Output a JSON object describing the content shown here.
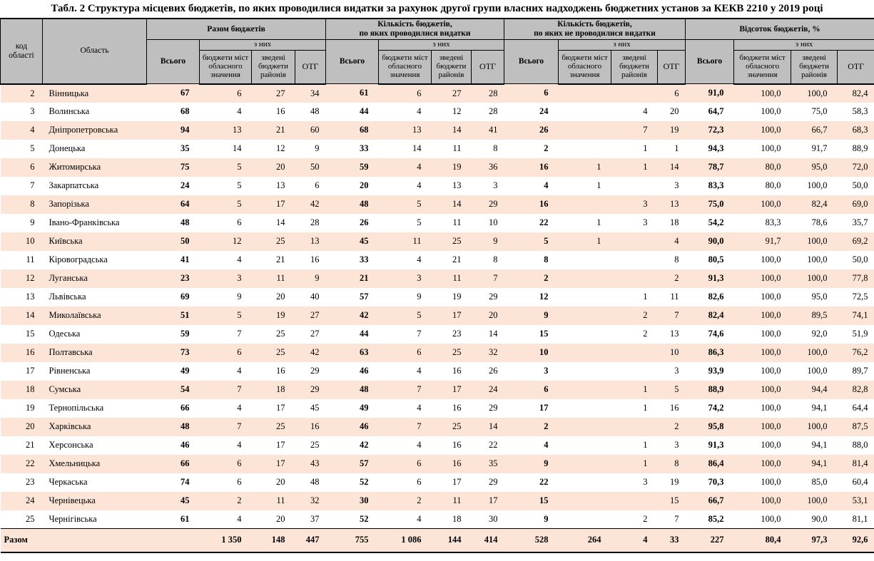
{
  "title": "Табл. 2 Структура місцевих бюджетів, по яких проводилися видатки за рахунок другої групи власних надходжень бюджетних установ за КЕКВ 2210 у 2019 році",
  "colors": {
    "header_bg": "#bfbfbf",
    "band_bg": "#fce4d6",
    "border": "#000000"
  },
  "header": {
    "region_code": "код області",
    "region": "Область",
    "groups": [
      {
        "label": "Разом бюджетів"
      },
      {
        "label": "Кількість бюджетів,\nпо яких проводилися видатки"
      },
      {
        "label": "Кількість бюджетів,\nпо яких не проводилися видатки"
      },
      {
        "label": "Відсоток бюджетів, %"
      }
    ],
    "total_label": "Всього",
    "of_them_label": "з них",
    "sub_columns": [
      "бюджети міст обласного значення",
      "зведені бюджети районів",
      "ОТГ"
    ]
  },
  "rows": [
    {
      "code": "2",
      "region": "Вінницька",
      "values": [
        "67",
        "6",
        "27",
        "34",
        "61",
        "6",
        "27",
        "28",
        "6",
        "",
        "",
        "6",
        "91,0",
        "100,0",
        "100,0",
        "82,4"
      ]
    },
    {
      "code": "3",
      "region": "Волинська",
      "values": [
        "68",
        "4",
        "16",
        "48",
        "44",
        "4",
        "12",
        "28",
        "24",
        "",
        "4",
        "20",
        "64,7",
        "100,0",
        "75,0",
        "58,3"
      ]
    },
    {
      "code": "4",
      "region": "Дніпропетровська",
      "values": [
        "94",
        "13",
        "21",
        "60",
        "68",
        "13",
        "14",
        "41",
        "26",
        "",
        "7",
        "19",
        "72,3",
        "100,0",
        "66,7",
        "68,3"
      ]
    },
    {
      "code": "5",
      "region": "Донецька",
      "values": [
        "35",
        "14",
        "12",
        "9",
        "33",
        "14",
        "11",
        "8",
        "2",
        "",
        "1",
        "1",
        "94,3",
        "100,0",
        "91,7",
        "88,9"
      ]
    },
    {
      "code": "6",
      "region": "Житомирська",
      "values": [
        "75",
        "5",
        "20",
        "50",
        "59",
        "4",
        "19",
        "36",
        "16",
        "1",
        "1",
        "14",
        "78,7",
        "80,0",
        "95,0",
        "72,0"
      ]
    },
    {
      "code": "7",
      "region": "Закарпатська",
      "values": [
        "24",
        "5",
        "13",
        "6",
        "20",
        "4",
        "13",
        "3",
        "4",
        "1",
        "",
        "3",
        "83,3",
        "80,0",
        "100,0",
        "50,0"
      ]
    },
    {
      "code": "8",
      "region": "Запорізька",
      "values": [
        "64",
        "5",
        "17",
        "42",
        "48",
        "5",
        "14",
        "29",
        "16",
        "",
        "3",
        "13",
        "75,0",
        "100,0",
        "82,4",
        "69,0"
      ]
    },
    {
      "code": "9",
      "region": "Івано-Франківська",
      "values": [
        "48",
        "6",
        "14",
        "28",
        "26",
        "5",
        "11",
        "10",
        "22",
        "1",
        "3",
        "18",
        "54,2",
        "83,3",
        "78,6",
        "35,7"
      ]
    },
    {
      "code": "10",
      "region": "Київська",
      "values": [
        "50",
        "12",
        "25",
        "13",
        "45",
        "11",
        "25",
        "9",
        "5",
        "1",
        "",
        "4",
        "90,0",
        "91,7",
        "100,0",
        "69,2"
      ]
    },
    {
      "code": "11",
      "region": "Кіровоградська",
      "values": [
        "41",
        "4",
        "21",
        "16",
        "33",
        "4",
        "21",
        "8",
        "8",
        "",
        "",
        "8",
        "80,5",
        "100,0",
        "100,0",
        "50,0"
      ]
    },
    {
      "code": "12",
      "region": "Луганська",
      "values": [
        "23",
        "3",
        "11",
        "9",
        "21",
        "3",
        "11",
        "7",
        "2",
        "",
        "",
        "2",
        "91,3",
        "100,0",
        "100,0",
        "77,8"
      ]
    },
    {
      "code": "13",
      "region": "Львівська",
      "values": [
        "69",
        "9",
        "20",
        "40",
        "57",
        "9",
        "19",
        "29",
        "12",
        "",
        "1",
        "11",
        "82,6",
        "100,0",
        "95,0",
        "72,5"
      ]
    },
    {
      "code": "14",
      "region": "Миколаївська",
      "values": [
        "51",
        "5",
        "19",
        "27",
        "42",
        "5",
        "17",
        "20",
        "9",
        "",
        "2",
        "7",
        "82,4",
        "100,0",
        "89,5",
        "74,1"
      ]
    },
    {
      "code": "15",
      "region": "Одеська",
      "values": [
        "59",
        "7",
        "25",
        "27",
        "44",
        "7",
        "23",
        "14",
        "15",
        "",
        "2",
        "13",
        "74,6",
        "100,0",
        "92,0",
        "51,9"
      ]
    },
    {
      "code": "16",
      "region": "Полтавська",
      "values": [
        "73",
        "6",
        "25",
        "42",
        "63",
        "6",
        "25",
        "32",
        "10",
        "",
        "",
        "10",
        "86,3",
        "100,0",
        "100,0",
        "76,2"
      ]
    },
    {
      "code": "17",
      "region": "Рівненська",
      "values": [
        "49",
        "4",
        "16",
        "29",
        "46",
        "4",
        "16",
        "26",
        "3",
        "",
        "",
        "3",
        "93,9",
        "100,0",
        "100,0",
        "89,7"
      ]
    },
    {
      "code": "18",
      "region": "Сумська",
      "values": [
        "54",
        "7",
        "18",
        "29",
        "48",
        "7",
        "17",
        "24",
        "6",
        "",
        "1",
        "5",
        "88,9",
        "100,0",
        "94,4",
        "82,8"
      ]
    },
    {
      "code": "19",
      "region": "Тернопільська",
      "values": [
        "66",
        "4",
        "17",
        "45",
        "49",
        "4",
        "16",
        "29",
        "17",
        "",
        "1",
        "16",
        "74,2",
        "100,0",
        "94,1",
        "64,4"
      ]
    },
    {
      "code": "20",
      "region": "Харківська",
      "values": [
        "48",
        "7",
        "25",
        "16",
        "46",
        "7",
        "25",
        "14",
        "2",
        "",
        "",
        "2",
        "95,8",
        "100,0",
        "100,0",
        "87,5"
      ]
    },
    {
      "code": "21",
      "region": "Херсонська",
      "values": [
        "46",
        "4",
        "17",
        "25",
        "42",
        "4",
        "16",
        "22",
        "4",
        "",
        "1",
        "3",
        "91,3",
        "100,0",
        "94,1",
        "88,0"
      ]
    },
    {
      "code": "22",
      "region": "Хмельницька",
      "values": [
        "66",
        "6",
        "17",
        "43",
        "57",
        "6",
        "16",
        "35",
        "9",
        "",
        "1",
        "8",
        "86,4",
        "100,0",
        "94,1",
        "81,4"
      ]
    },
    {
      "code": "23",
      "region": "Черкаська",
      "values": [
        "74",
        "6",
        "20",
        "48",
        "52",
        "6",
        "17",
        "29",
        "22",
        "",
        "3",
        "19",
        "70,3",
        "100,0",
        "85,0",
        "60,4"
      ]
    },
    {
      "code": "24",
      "region": "Чернівецька",
      "values": [
        "45",
        "2",
        "11",
        "32",
        "30",
        "2",
        "11",
        "17",
        "15",
        "",
        "",
        "15",
        "66,7",
        "100,0",
        "100,0",
        "53,1"
      ]
    },
    {
      "code": "25",
      "region": "Чернігівська",
      "values": [
        "61",
        "4",
        "20",
        "37",
        "52",
        "4",
        "18",
        "30",
        "9",
        "",
        "2",
        "7",
        "85,2",
        "100,0",
        "90,0",
        "81,1"
      ]
    }
  ],
  "totals": {
    "label": "Разом",
    "values": [
      "",
      "1 350",
      "148",
      "447",
      "755",
      "1 086",
      "144",
      "414",
      "528",
      "264",
      "4",
      "33",
      "227",
      "80,4",
      "97,3",
      "92,6"
    ]
  }
}
